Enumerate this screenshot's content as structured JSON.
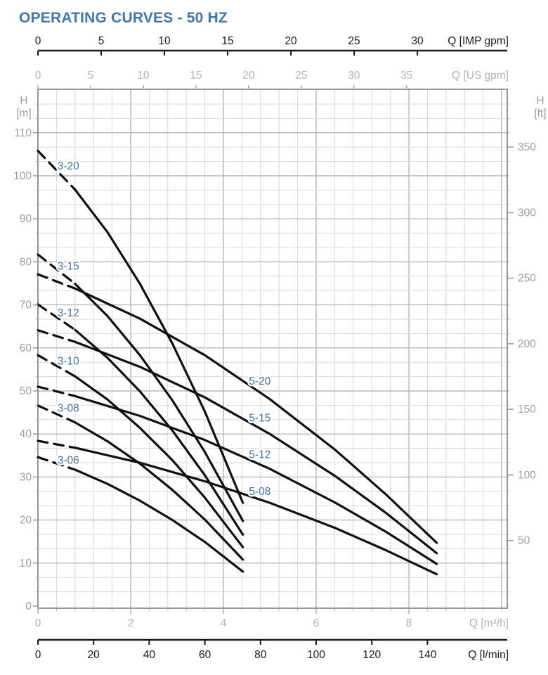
{
  "title": "OPERATING CURVES - 50 HZ",
  "colors": {
    "title_blue": "#4276a9",
    "label_blue": "#3f74a6",
    "axis_black": "#1a1a1a",
    "axis_gray": "#b3b3b3",
    "tick_text_gray": "#9e9e9e",
    "grid_minor": "#d9d9d9",
    "grid_major": "#b7b7b7",
    "plot_border": "#8a8a8a",
    "curve_black": "#0f0f0f"
  },
  "chart_data": {
    "type": "line",
    "title": "OPERATING CURVES - 50 HZ",
    "x_unit_base": "m3/h",
    "x_range_m3h": [
      0,
      10.12
    ],
    "y_range_m": [
      0,
      120.1
    ],
    "grid": {
      "on": true,
      "x_minor_step_m3h": 0.4,
      "x_major_step_m3h": 2,
      "y_minor_step_m": 3.3333,
      "y_major_step_m": 10
    },
    "axes": {
      "x_top_primary": {
        "label": "Q [IMP gpm]",
        "ticks": [
          0,
          5,
          10,
          15,
          20,
          25,
          30
        ],
        "m3h_per_unit": 0.272765,
        "color": "black"
      },
      "x_top_secondary": {
        "label": "Q [US gpm]",
        "ticks": [
          0,
          5,
          10,
          15,
          20,
          25,
          30,
          35
        ],
        "m3h_per_unit": 0.227125,
        "color": "gray"
      },
      "x_bottom_primary": {
        "label": "Q [m³/h]",
        "ticks": [
          0,
          2,
          4,
          6,
          8
        ],
        "m3h_per_unit": 1,
        "color": "gray"
      },
      "x_bottom_secondary": {
        "label": "Q [l/min]",
        "ticks": [
          0,
          20,
          40,
          60,
          80,
          100,
          120,
          140
        ],
        "m3h_per_unit": 0.06,
        "color": "black"
      },
      "y_left": {
        "label_lines": [
          "H",
          "[m]"
        ],
        "ticks": [
          0,
          10,
          20,
          30,
          40,
          50,
          60,
          70,
          80,
          90,
          100,
          110
        ],
        "m_per_unit": 1
      },
      "y_right": {
        "label_lines": [
          "H",
          "[ft]"
        ],
        "ticks": [
          50,
          100,
          150,
          200,
          250,
          300,
          350
        ],
        "m_per_unit": 0.3048
      }
    },
    "series": [
      {
        "name": "3-20",
        "label": "3-20",
        "label_pos": [
          0.42,
          101.5
        ],
        "dashed": [
          [
            0,
            105.8
          ],
          [
            0.8,
            96.8
          ]
        ],
        "points": [
          [
            0.8,
            96.8
          ],
          [
            1.5,
            86.9
          ],
          [
            2.2,
            74.9
          ],
          [
            2.9,
            61.0
          ],
          [
            3.6,
            45.2
          ],
          [
            4.42,
            24.0
          ]
        ]
      },
      {
        "name": "3-15",
        "label": "3-15",
        "label_pos": [
          0.42,
          78.2
        ],
        "dashed": [
          [
            0,
            81.7
          ],
          [
            0.8,
            74.9
          ]
        ],
        "points": [
          [
            0.8,
            74.9
          ],
          [
            1.5,
            67.4
          ],
          [
            2.2,
            58.3
          ],
          [
            2.9,
            47.8
          ],
          [
            3.6,
            35.8
          ],
          [
            4.42,
            19.8
          ]
        ]
      },
      {
        "name": "3-12",
        "label": "3-12",
        "label_pos": [
          0.42,
          67.3
        ],
        "dashed": [
          [
            0,
            70.1
          ],
          [
            0.8,
            64.2
          ]
        ],
        "points": [
          [
            0.8,
            64.2
          ],
          [
            1.5,
            57.7
          ],
          [
            2.2,
            49.9
          ],
          [
            2.9,
            40.8
          ],
          [
            3.6,
            30.4
          ],
          [
            4.42,
            16.6
          ]
        ]
      },
      {
        "name": "3-10",
        "label": "3-10",
        "label_pos": [
          0.42,
          56.1
        ],
        "dashed": [
          [
            0,
            58.3
          ],
          [
            0.8,
            53.4
          ]
        ],
        "points": [
          [
            0.8,
            53.4
          ],
          [
            1.5,
            48.0
          ],
          [
            2.2,
            41.4
          ],
          [
            2.9,
            33.9
          ],
          [
            3.6,
            25.2
          ],
          [
            4.42,
            13.7
          ]
        ]
      },
      {
        "name": "3-08",
        "label": "3-08",
        "label_pos": [
          0.42,
          45.2
        ],
        "dashed": [
          [
            0,
            46.6
          ],
          [
            0.8,
            42.7
          ]
        ],
        "points": [
          [
            0.8,
            42.7
          ],
          [
            1.5,
            38.3
          ],
          [
            2.2,
            33.1
          ],
          [
            2.9,
            27.0
          ],
          [
            3.6,
            20.1
          ],
          [
            4.42,
            10.8
          ]
        ]
      },
      {
        "name": "3-06",
        "label": "3-06",
        "label_pos": [
          0.42,
          33.1
        ],
        "dashed": [
          [
            0,
            34.6
          ],
          [
            0.8,
            31.7
          ]
        ],
        "points": [
          [
            0.8,
            31.7
          ],
          [
            1.5,
            28.4
          ],
          [
            2.2,
            24.5
          ],
          [
            2.9,
            20.0
          ],
          [
            3.6,
            14.9
          ],
          [
            4.42,
            8.0
          ]
        ]
      },
      {
        "name": "5-20",
        "label": "5-20",
        "label_pos": [
          4.55,
          51.5
        ],
        "dashed": [
          [
            0,
            77.1
          ],
          [
            0.8,
            73.8
          ]
        ],
        "points": [
          [
            0.8,
            73.8
          ],
          [
            2.2,
            66.8
          ],
          [
            3.6,
            58.3
          ],
          [
            5.0,
            48.1
          ],
          [
            6.4,
            36.4
          ],
          [
            7.5,
            26.0
          ],
          [
            8.6,
            14.7
          ]
        ]
      },
      {
        "name": "5-15",
        "label": "5-15",
        "label_pos": [
          4.55,
          42.9
        ],
        "dashed": [
          [
            0,
            64.1
          ],
          [
            0.8,
            61.4
          ]
        ],
        "points": [
          [
            0.8,
            61.4
          ],
          [
            2.2,
            55.6
          ],
          [
            3.6,
            48.5
          ],
          [
            5.0,
            40.0
          ],
          [
            6.4,
            30.3
          ],
          [
            7.5,
            21.7
          ],
          [
            8.6,
            12.3
          ]
        ]
      },
      {
        "name": "5-12",
        "label": "5-12",
        "label_pos": [
          4.55,
          34.4
        ],
        "dashed": [
          [
            0,
            51.0
          ],
          [
            0.8,
            48.8
          ]
        ],
        "points": [
          [
            0.8,
            48.8
          ],
          [
            2.2,
            44.2
          ],
          [
            3.6,
            38.6
          ],
          [
            5.0,
            31.9
          ],
          [
            6.4,
            24.1
          ],
          [
            7.5,
            17.3
          ],
          [
            8.6,
            9.8
          ]
        ]
      },
      {
        "name": "5-08",
        "label": "5-08",
        "label_pos": [
          4.55,
          25.8
        ],
        "dashed": [
          [
            0,
            38.4
          ],
          [
            0.8,
            36.8
          ]
        ],
        "points": [
          [
            0.8,
            36.8
          ],
          [
            2.2,
            33.3
          ],
          [
            3.6,
            29.0
          ],
          [
            5.0,
            24.0
          ],
          [
            6.4,
            18.2
          ],
          [
            7.5,
            13.0
          ],
          [
            8.6,
            7.4
          ]
        ]
      }
    ]
  }
}
